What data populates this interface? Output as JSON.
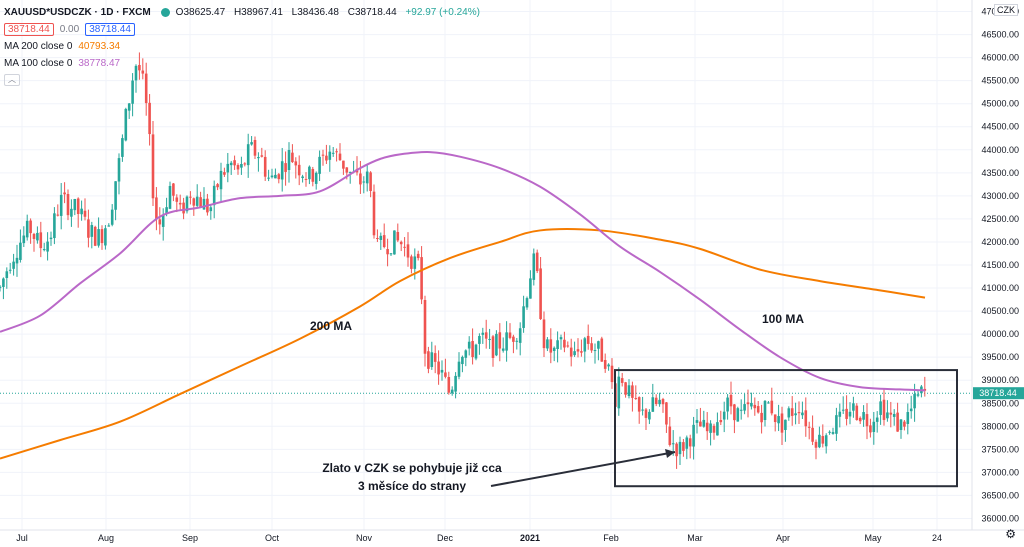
{
  "legend": {
    "symbol": "XAUUSD*USDCZK · 1D · FXCM",
    "open": "O38625.47",
    "high": "H38967.41",
    "low": "L38436.48",
    "close": "C38718.44",
    "change": "+92.97 (+0.24%)",
    "bid": "38718.44",
    "spread": "0.00",
    "ask": "38718.44",
    "ma200_label": "MA 200 close 0",
    "ma200_value": "40793.34",
    "ma100_label": "MA 100 close 0",
    "ma100_value": "38778.47",
    "collapse_icon": "chevron-up-icon"
  },
  "currency_label": "CZK",
  "last_price_label": "38718.44",
  "annotations": {
    "ma200": "200 MA",
    "ma100": "100 MA",
    "note_line1": "Zlato v CZK se pohybuje již cca",
    "note_line2": "3 měsíce do strany"
  },
  "colors": {
    "up": "#26a69a",
    "down": "#ef5350",
    "ma200": "#f57c00",
    "ma100": "#ba68c8",
    "box": "#2a2e39"
  },
  "chart_data": {
    "type": "candlestick",
    "title": "XAUUSD*USDCZK · 1D · FXCM",
    "y_ticks": [
      36000,
      36500,
      37000,
      37500,
      38000,
      38500,
      39000,
      39500,
      40000,
      40500,
      41000,
      41500,
      42000,
      42500,
      43000,
      43500,
      44000,
      44500,
      45000,
      45500,
      46000,
      46500,
      47000
    ],
    "y_tick_labels": [
      "36000.00",
      "36500.00",
      "37000.00",
      "37500.00",
      "38000.00",
      "38500.00",
      "39000.00",
      "39500.00",
      "40000.00",
      "40500.00",
      "41000.00",
      "41500.00",
      "42000.00",
      "42500.00",
      "43000.00",
      "43500.00",
      "44000.00",
      "44500.00",
      "45000.00",
      "45500.00",
      "46000.00",
      "46500.00",
      "47000.00"
    ],
    "ylim": [
      35750,
      47250
    ],
    "x_labels": [
      "Jul",
      "Aug",
      "Sep",
      "Oct",
      "Nov",
      "Dec",
      "2021",
      "Feb",
      "Mar",
      "Apr",
      "May",
      "24"
    ],
    "x_label_days": [
      22,
      106,
      190,
      272,
      364,
      445,
      530,
      611,
      695,
      783,
      873,
      937
    ],
    "last_price": 38718.44,
    "close_points": [
      [
        0,
        41000
      ],
      [
        10,
        41600
      ],
      [
        20,
        42000
      ],
      [
        30,
        42300
      ],
      [
        40,
        41900
      ],
      [
        50,
        42100
      ],
      [
        60,
        42900
      ],
      [
        70,
        42800
      ],
      [
        80,
        42600
      ],
      [
        90,
        42200
      ],
      [
        100,
        42100
      ],
      [
        110,
        42600
      ],
      [
        115,
        43300
      ],
      [
        120,
        43800
      ],
      [
        125,
        44600
      ],
      [
        130,
        45200
      ],
      [
        135,
        45900
      ],
      [
        140,
        45700
      ],
      [
        145,
        45200
      ],
      [
        150,
        44000
      ],
      [
        155,
        42600
      ],
      [
        160,
        42400
      ],
      [
        170,
        43200
      ],
      [
        180,
        42600
      ],
      [
        190,
        43100
      ],
      [
        200,
        42900
      ],
      [
        210,
        42700
      ],
      [
        220,
        43400
      ],
      [
        230,
        43700
      ],
      [
        240,
        43500
      ],
      [
        250,
        44000
      ],
      [
        260,
        43900
      ],
      [
        270,
        43300
      ],
      [
        280,
        43600
      ],
      [
        290,
        43900
      ],
      [
        300,
        43600
      ],
      [
        310,
        43400
      ],
      [
        320,
        43700
      ],
      [
        330,
        44000
      ],
      [
        340,
        43800
      ],
      [
        350,
        43500
      ],
      [
        360,
        43300
      ],
      [
        367,
        43400
      ],
      [
        372,
        42900
      ],
      [
        376,
        41800
      ],
      [
        380,
        41900
      ],
      [
        390,
        42000
      ],
      [
        400,
        42000
      ],
      [
        410,
        41700
      ],
      [
        420,
        41400
      ],
      [
        425,
        39700
      ],
      [
        430,
        39400
      ],
      [
        440,
        39200
      ],
      [
        450,
        38700
      ],
      [
        460,
        39700
      ],
      [
        470,
        39600
      ],
      [
        480,
        39900
      ],
      [
        490,
        39700
      ],
      [
        500,
        39800
      ],
      [
        510,
        39900
      ],
      [
        520,
        40200
      ],
      [
        530,
        41300
      ],
      [
        535,
        41600
      ],
      [
        545,
        39700
      ],
      [
        555,
        39600
      ],
      [
        565,
        39800
      ],
      [
        575,
        39500
      ],
      [
        585,
        39900
      ],
      [
        595,
        39700
      ],
      [
        605,
        39500
      ],
      [
        610,
        39100
      ],
      [
        615,
        38600
      ],
      [
        620,
        39200
      ],
      [
        630,
        38600
      ],
      [
        640,
        38200
      ],
      [
        650,
        38400
      ],
      [
        660,
        38500
      ],
      [
        670,
        37700
      ],
      [
        680,
        37500
      ],
      [
        690,
        37800
      ],
      [
        700,
        38000
      ],
      [
        710,
        37800
      ],
      [
        720,
        38300
      ],
      [
        730,
        38500
      ],
      [
        740,
        38200
      ],
      [
        750,
        38400
      ],
      [
        760,
        38300
      ],
      [
        770,
        38500
      ],
      [
        780,
        38000
      ],
      [
        790,
        38300
      ],
      [
        800,
        38500
      ],
      [
        810,
        37900
      ],
      [
        820,
        37700
      ],
      [
        830,
        38000
      ],
      [
        840,
        38100
      ],
      [
        850,
        38400
      ],
      [
        860,
        38300
      ],
      [
        870,
        38100
      ],
      [
        880,
        38500
      ],
      [
        890,
        38200
      ],
      [
        900,
        38000
      ],
      [
        910,
        38300
      ],
      [
        920,
        38700
      ],
      [
        925,
        38718
      ]
    ],
    "series": [
      {
        "name": "MA 200 close 0",
        "x": [
          0,
          60,
          120,
          180,
          240,
          300,
          360,
          400,
          450,
          500,
          540,
          600,
          660,
          700,
          760,
          820,
          880,
          925
        ],
        "values": [
          37300,
          37700,
          38100,
          38700,
          39300,
          39900,
          40600,
          41150,
          41650,
          42000,
          42250,
          42250,
          42050,
          41850,
          41400,
          41150,
          40950,
          40793
        ]
      },
      {
        "name": "MA 100 close 0",
        "x": [
          0,
          40,
          80,
          120,
          160,
          200,
          240,
          280,
          320,
          360,
          380,
          400,
          430,
          460,
          500,
          540,
          580,
          620,
          660,
          700,
          740,
          780,
          820,
          860,
          900,
          925
        ],
        "values": [
          40050,
          40400,
          41100,
          41750,
          42550,
          42750,
          42950,
          43000,
          43100,
          43600,
          43800,
          43900,
          43950,
          43850,
          43600,
          43200,
          42600,
          41900,
          41350,
          40750,
          40100,
          39500,
          39050,
          38850,
          38800,
          38778
        ]
      }
    ],
    "box": {
      "x": [
        615,
        957
      ],
      "y": [
        36700,
        39220
      ]
    }
  }
}
